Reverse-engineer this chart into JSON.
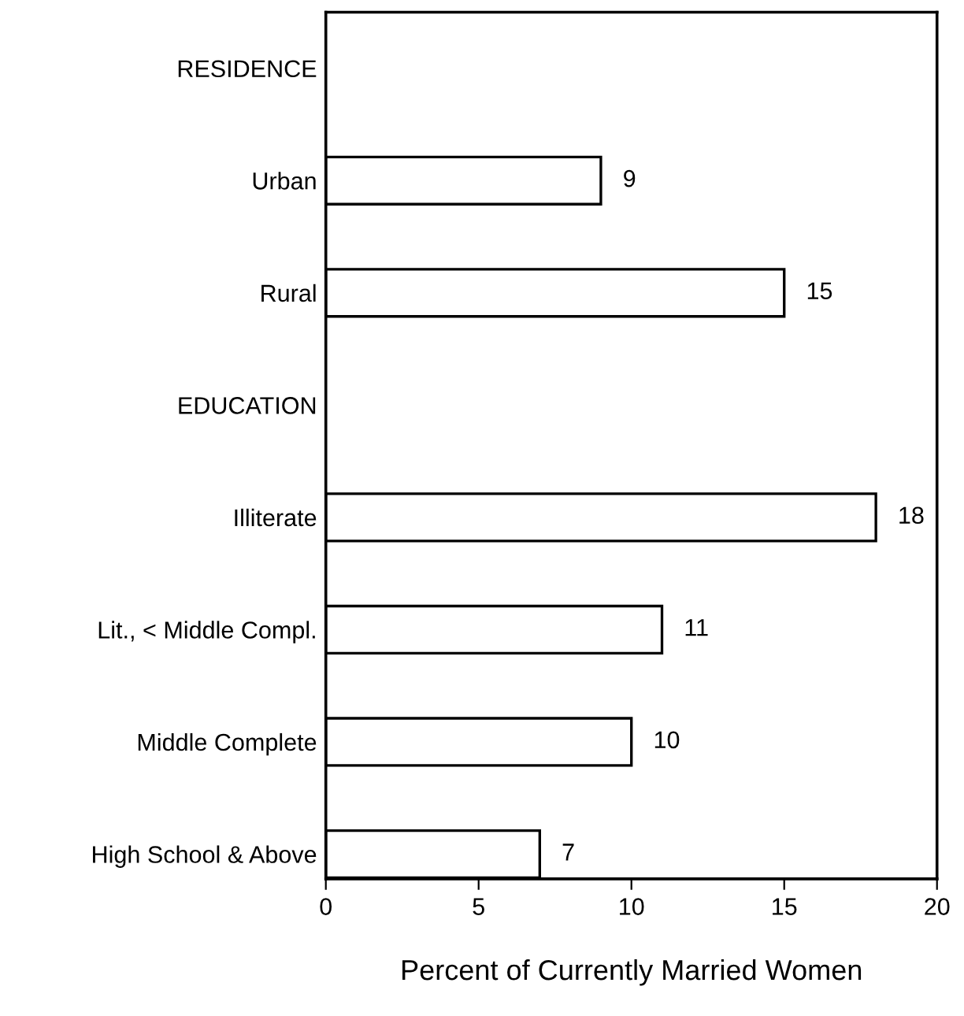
{
  "chart_data": {
    "type": "bar",
    "orientation": "horizontal",
    "categories": [
      "RESIDENCE",
      "Urban",
      "Rural",
      "EDUCATION",
      "Illiterate",
      "Lit., < Middle Compl.",
      "Middle Complete",
      "High School & Above"
    ],
    "values": [
      null,
      9,
      15,
      null,
      18,
      11,
      10,
      7
    ],
    "color": "#ffffff",
    "xlabel": "Percent of Currently Married Women",
    "xlim": [
      0,
      20
    ],
    "xticks": [
      0,
      5,
      10,
      15,
      20
    ],
    "data_labels": true,
    "grid": false,
    "legend": false
  }
}
